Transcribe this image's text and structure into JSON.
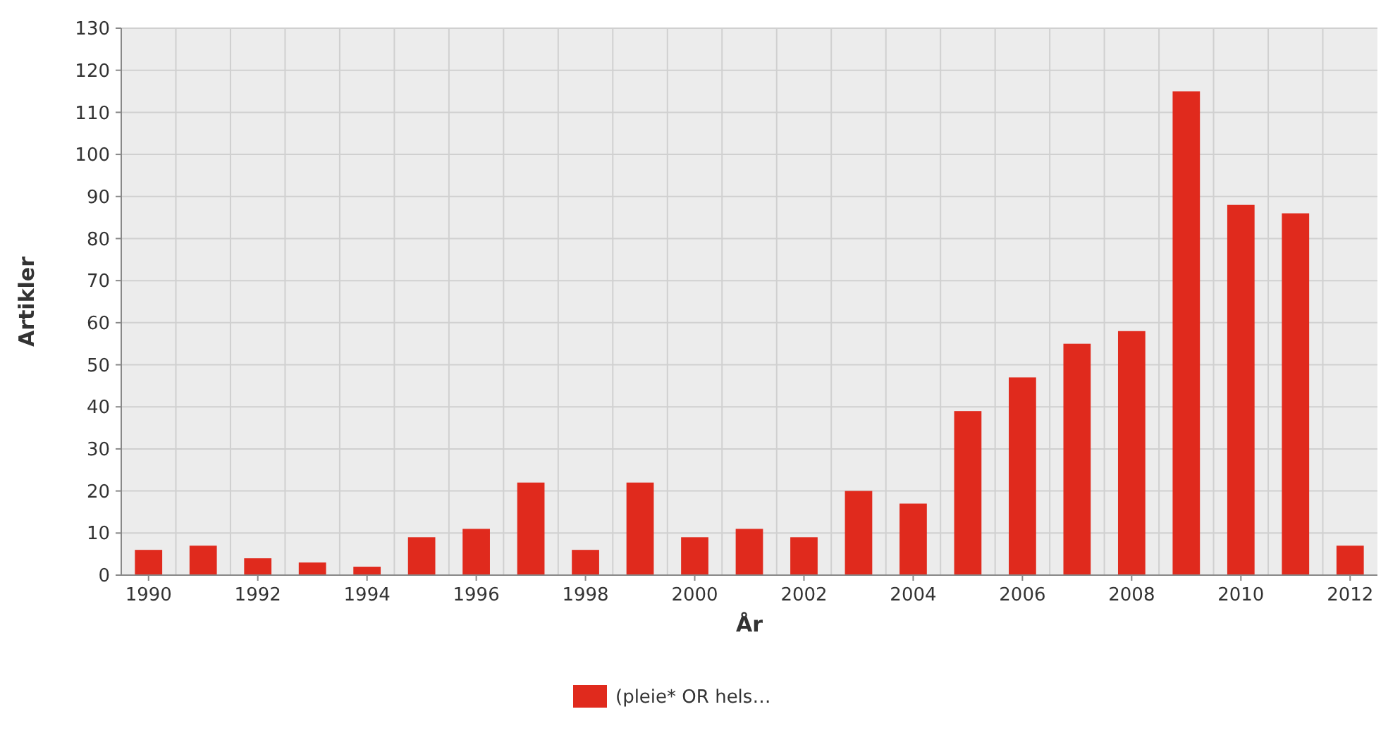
{
  "chart_data": {
    "type": "bar",
    "xlabel": "År",
    "ylabel": "Artikler",
    "categories": [
      "1990",
      null,
      "1992",
      null,
      "1994",
      null,
      "1996",
      null,
      "1998",
      null,
      "2000",
      null,
      "2002",
      null,
      "2004",
      null,
      "2006",
      null,
      "2008",
      null,
      "2010",
      null,
      "2012"
    ],
    "series": [
      {
        "name": "(pleie* OR hels…",
        "color": "#e02a1d",
        "values": [
          6,
          7,
          4,
          3,
          2,
          9,
          11,
          22,
          6,
          22,
          9,
          11,
          9,
          20,
          17,
          39,
          47,
          55,
          58,
          115,
          88,
          86,
          7
        ]
      }
    ],
    "ylim": [
      0,
      130
    ],
    "yticks": [
      0,
      10,
      20,
      30,
      40,
      50,
      60,
      70,
      80,
      90,
      100,
      110,
      120,
      130
    ],
    "grid": true,
    "legend": "bottom"
  }
}
